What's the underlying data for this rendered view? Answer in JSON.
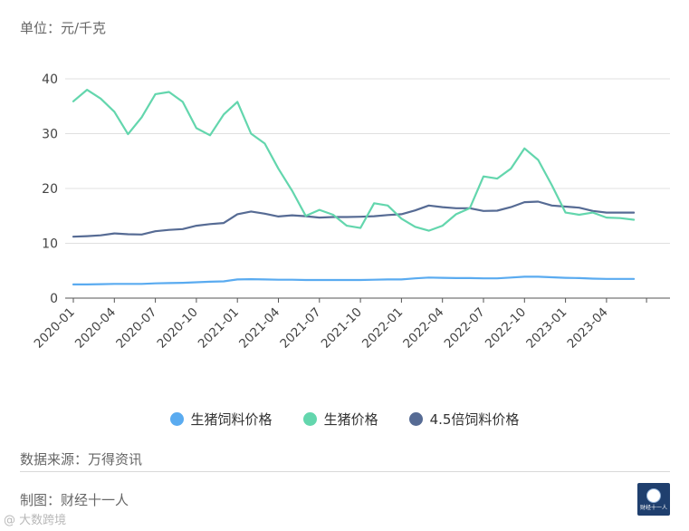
{
  "unit_label": "单位：元/千克",
  "source_text": "数据来源：万得资讯",
  "maker_text": "制图：财经十一人",
  "watermark_text": "@ 大数跨境",
  "logo_text": "财经十一人",
  "colors": {
    "feed": "#5aabf0",
    "hog": "#63d6ad",
    "feed45": "#566b94",
    "grid": "#e0e0e0",
    "axis": "#444444"
  },
  "chart_data": {
    "type": "line",
    "title": "",
    "xlabel": "",
    "ylabel": "单位：元/千克",
    "ylim": [
      0,
      40
    ],
    "yticks": [
      "0",
      "10",
      "20",
      "30",
      "40"
    ],
    "grid": "horizontal",
    "legend_position": "bottom",
    "x_tick_labels": [
      "2020-01",
      "2020-04",
      "2020-07",
      "2020-10",
      "2021-01",
      "2021-04",
      "2021-07",
      "2021-10",
      "2022-01",
      "2022-04",
      "2022-07",
      "2022-10",
      "2023-01",
      "2023-04"
    ],
    "x": [
      "2020-01",
      "2020-02",
      "2020-03",
      "2020-04",
      "2020-05",
      "2020-06",
      "2020-07",
      "2020-08",
      "2020-09",
      "2020-10",
      "2020-11",
      "2020-12",
      "2021-01",
      "2021-02",
      "2021-03",
      "2021-04",
      "2021-05",
      "2021-06",
      "2021-07",
      "2021-08",
      "2021-09",
      "2021-10",
      "2021-11",
      "2021-12",
      "2022-01",
      "2022-02",
      "2022-03",
      "2022-04",
      "2022-05",
      "2022-06",
      "2022-07",
      "2022-08",
      "2022-09",
      "2022-10",
      "2022-11",
      "2022-12",
      "2023-01",
      "2023-02",
      "2023-03",
      "2023-04",
      "2023-05",
      "2023-06"
    ],
    "series": [
      {
        "name": "生猪饲料价格",
        "color": "#5aabf0",
        "values": [
          2.5,
          2.5,
          2.55,
          2.6,
          2.6,
          2.6,
          2.7,
          2.75,
          2.8,
          2.9,
          3.0,
          3.05,
          3.4,
          3.45,
          3.4,
          3.35,
          3.35,
          3.3,
          3.3,
          3.3,
          3.3,
          3.3,
          3.35,
          3.4,
          3.4,
          3.6,
          3.75,
          3.7,
          3.65,
          3.65,
          3.6,
          3.6,
          3.75,
          3.9,
          3.9,
          3.8,
          3.7,
          3.65,
          3.55,
          3.5,
          3.5,
          3.5
        ]
      },
      {
        "name": "生猪价格",
        "color": "#63d6ad",
        "values": [
          35.9,
          38.0,
          36.4,
          34.0,
          29.9,
          33.0,
          37.2,
          37.6,
          35.8,
          31.0,
          29.7,
          33.5,
          35.8,
          30.0,
          28.2,
          23.6,
          19.6,
          15.0,
          16.1,
          15.2,
          13.2,
          12.8,
          17.3,
          16.9,
          14.5,
          13.0,
          12.3,
          13.2,
          15.3,
          16.4,
          22.2,
          21.8,
          23.6,
          27.3,
          25.2,
          20.6,
          15.6,
          15.2,
          15.6,
          14.7,
          14.6,
          14.3
        ]
      },
      {
        "name": "4.5倍饲料价格",
        "color": "#566b94",
        "values": [
          11.2,
          11.3,
          11.45,
          11.8,
          11.65,
          11.6,
          12.2,
          12.45,
          12.6,
          13.2,
          13.5,
          13.7,
          15.3,
          15.8,
          15.4,
          14.9,
          15.1,
          14.95,
          14.7,
          14.8,
          14.8,
          14.85,
          14.95,
          15.15,
          15.3,
          16.0,
          16.9,
          16.6,
          16.4,
          16.4,
          15.9,
          15.95,
          16.6,
          17.5,
          17.6,
          16.9,
          16.7,
          16.5,
          15.9,
          15.6,
          15.6,
          15.6
        ]
      }
    ]
  }
}
